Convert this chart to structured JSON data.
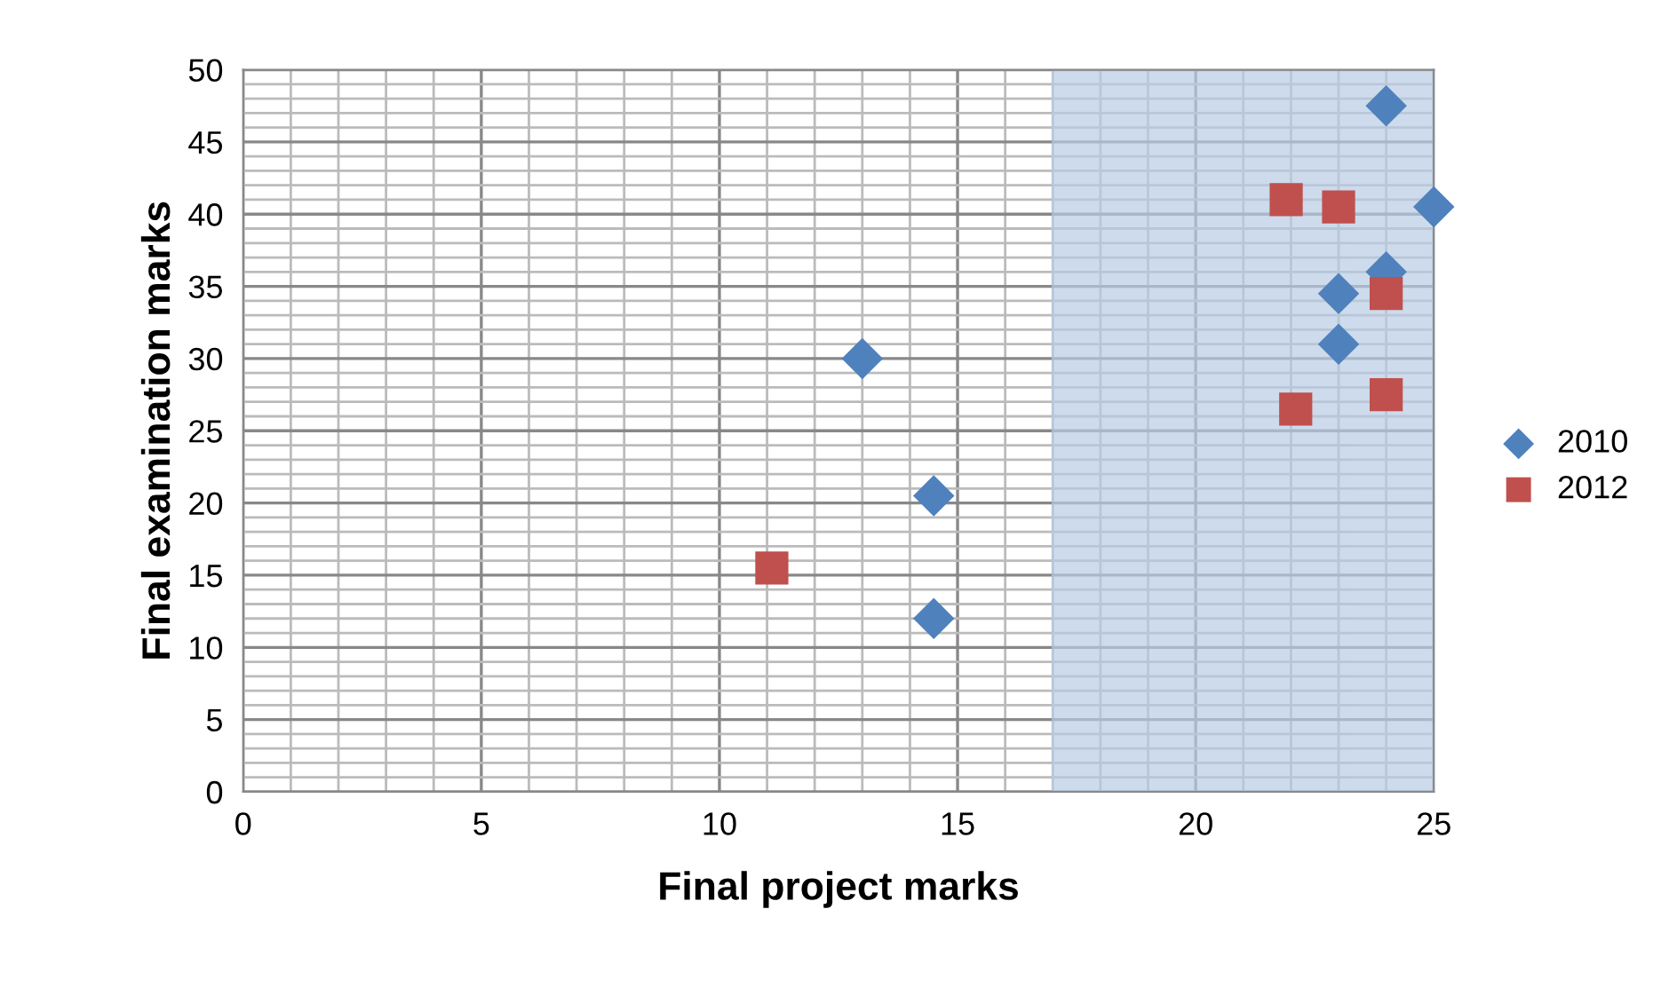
{
  "chart_data": {
    "type": "scatter",
    "xlabel": "Final project marks",
    "ylabel": "Final examination marks",
    "xlim": [
      0,
      25
    ],
    "xticks": [
      0,
      5,
      10,
      15,
      20,
      25
    ],
    "ylim": [
      0,
      50
    ],
    "yticks": [
      0,
      5,
      10,
      15,
      20,
      25,
      30,
      35,
      40,
      45,
      50
    ],
    "grid": true,
    "legend": "right",
    "bands": [
      {
        "axis": "x",
        "from": 17,
        "to": 25,
        "label": null,
        "color": "#b8cce4"
      }
    ],
    "series": [
      {
        "name": "2010",
        "color": "#4f81bd",
        "marker": "diamond",
        "x": [
          24,
          25,
          24,
          23,
          23,
          13,
          14.5,
          14.5
        ],
        "values": [
          47.5,
          40.5,
          36,
          34.5,
          31,
          30,
          20.5,
          12
        ]
      },
      {
        "name": "2012",
        "color": "#c0504d",
        "marker": "square",
        "x": [
          11.1,
          21.9,
          23,
          24,
          24,
          22.1
        ],
        "values": [
          15.5,
          41,
          40.5,
          34.5,
          27.5,
          26.5
        ]
      }
    ]
  }
}
